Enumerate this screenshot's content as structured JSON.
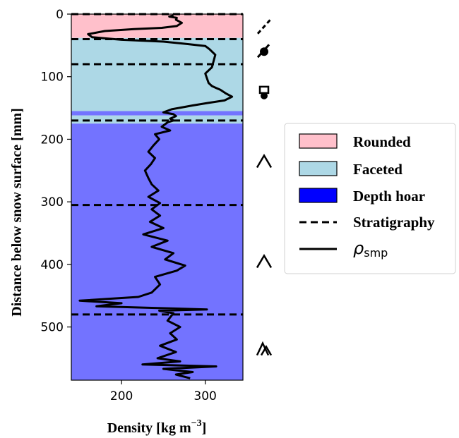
{
  "chart_data": {
    "type": "line",
    "xlabel": "Density [kg m",
    "xlabel_sup": "−3",
    "xlabel_end": "]",
    "ylabel": "Distance below snow surface [mm]",
    "xlim": [
      140,
      345
    ],
    "ylim": [
      585,
      0
    ],
    "x_ticks": [
      200,
      300
    ],
    "y_ticks": [
      0,
      100,
      200,
      300,
      400,
      500
    ],
    "grid": false,
    "legend_position": "right",
    "colors": {
      "rounded": "#ffc0cb",
      "faceted": "#add8e6",
      "depth_hoar": "#0000ff",
      "line": "#000000"
    },
    "layers": [
      {
        "type": "Rounded",
        "top": 0,
        "bottom": 38
      },
      {
        "type": "Faceted",
        "top": 38,
        "bottom": 155
      },
      {
        "type": "Depth hoar",
        "top": 155,
        "bottom": 162
      },
      {
        "type": "Faceted",
        "top": 162,
        "bottom": 175
      },
      {
        "type": "Depth hoar",
        "top": 175,
        "bottom": 585
      }
    ],
    "stratigraphy_depths": [
      0,
      40,
      80,
      170,
      305,
      480
    ],
    "grain_symbols": [
      {
        "depth": 20,
        "symbol": "slash-dash"
      },
      {
        "depth": 60,
        "symbol": "dot-slash"
      },
      {
        "depth": 125,
        "symbol": "box-dot"
      },
      {
        "depth": 235,
        "symbol": "caret"
      },
      {
        "depth": 395,
        "symbol": "caret"
      },
      {
        "depth": 535,
        "symbol": "double-caret"
      }
    ],
    "series": [
      {
        "legend": "ρ",
        "legend_sub": "smp",
        "points": [
          [
            262,
            2
          ],
          [
            257,
            4
          ],
          [
            266,
            6
          ],
          [
            265,
            9
          ],
          [
            272,
            14
          ],
          [
            266,
            19
          ],
          [
            248,
            22
          ],
          [
            215,
            24
          ],
          [
            180,
            27
          ],
          [
            160,
            32
          ],
          [
            165,
            37
          ],
          [
            200,
            41
          ],
          [
            250,
            44
          ],
          [
            280,
            48
          ],
          [
            300,
            51
          ],
          [
            305,
            56
          ],
          [
            312,
            65
          ],
          [
            310,
            75
          ],
          [
            308,
            85
          ],
          [
            300,
            95
          ],
          [
            304,
            110
          ],
          [
            308,
            115
          ],
          [
            313,
            118
          ],
          [
            318,
            121
          ],
          [
            325,
            127
          ],
          [
            332,
            132
          ],
          [
            323,
            138
          ],
          [
            303,
            142
          ],
          [
            285,
            146
          ],
          [
            260,
            152
          ],
          [
            250,
            157
          ],
          [
            262,
            160
          ],
          [
            265,
            163
          ],
          [
            258,
            167
          ],
          [
            262,
            170
          ],
          [
            255,
            173
          ],
          [
            248,
            180
          ],
          [
            258,
            186
          ],
          [
            240,
            192
          ],
          [
            245,
            200
          ],
          [
            238,
            210
          ],
          [
            232,
            220
          ],
          [
            240,
            230
          ],
          [
            235,
            240
          ],
          [
            228,
            250
          ],
          [
            232,
            262
          ],
          [
            236,
            272
          ],
          [
            244,
            282
          ],
          [
            232,
            292
          ],
          [
            246,
            302
          ],
          [
            236,
            312
          ],
          [
            246,
            322
          ],
          [
            234,
            332
          ],
          [
            250,
            342
          ],
          [
            226,
            352
          ],
          [
            255,
            362
          ],
          [
            236,
            372
          ],
          [
            262,
            382
          ],
          [
            252,
            392
          ],
          [
            276,
            402
          ],
          [
            266,
            410
          ],
          [
            240,
            420
          ],
          [
            246,
            432
          ],
          [
            236,
            445
          ],
          [
            220,
            452
          ],
          [
            150,
            458
          ],
          [
            200,
            462
          ],
          [
            170,
            467
          ],
          [
            225,
            469
          ],
          [
            302,
            472
          ],
          [
            245,
            474
          ],
          [
            262,
            478
          ],
          [
            255,
            490
          ],
          [
            270,
            500
          ],
          [
            258,
            510
          ],
          [
            266,
            520
          ],
          [
            246,
            530
          ],
          [
            265,
            540
          ],
          [
            243,
            550
          ],
          [
            270,
            555
          ],
          [
            225,
            560
          ],
          [
            313,
            563
          ],
          [
            250,
            567
          ],
          [
            285,
            572
          ],
          [
            265,
            576
          ],
          [
            282,
            582
          ]
        ]
      }
    ]
  },
  "legend": {
    "items": [
      {
        "label": "Rounded"
      },
      {
        "label": "Faceted"
      },
      {
        "label": "Depth hoar"
      },
      {
        "label": "Stratigraphy"
      }
    ]
  }
}
